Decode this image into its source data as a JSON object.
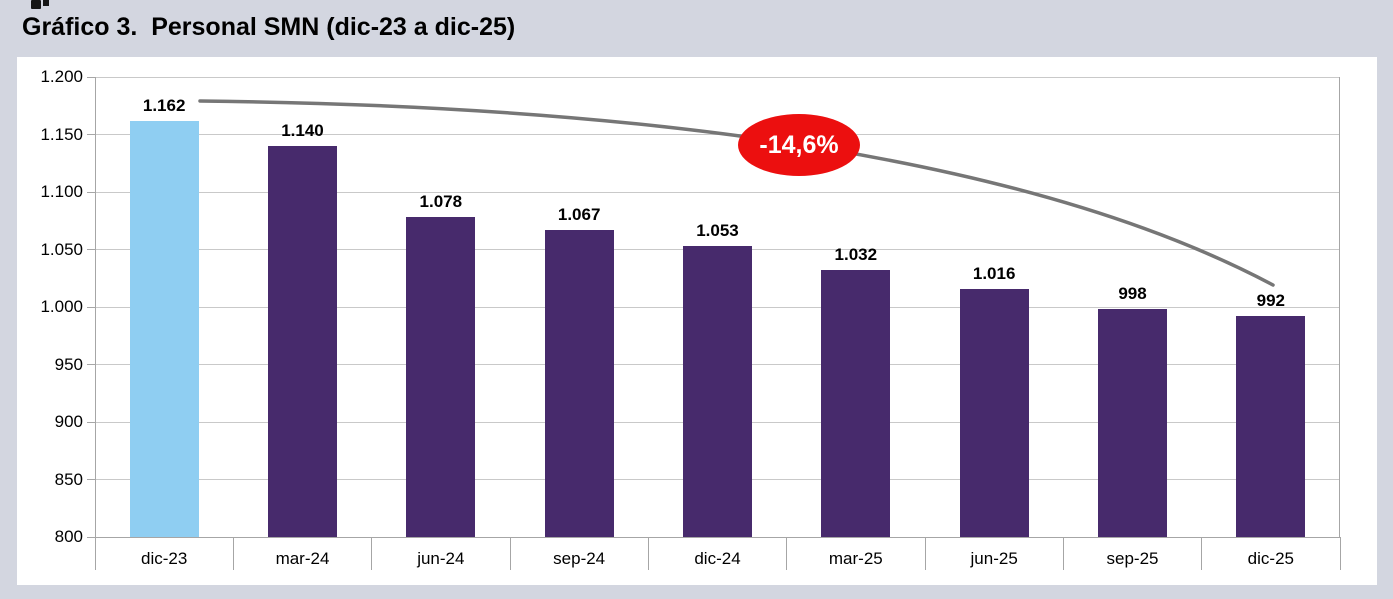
{
  "title": "Gráfico 3.  Personal SMN (dic-23 a dic-25)",
  "chart_data": {
    "type": "bar",
    "title": "Gráfico 3.  Personal SMN (dic-23 a dic-25)",
    "categories": [
      "dic-23",
      "mar-24",
      "jun-24",
      "sep-24",
      "dic-24",
      "mar-25",
      "jun-25",
      "sep-25",
      "dic-25"
    ],
    "values": [
      1162,
      1140,
      1078,
      1067,
      1053,
      1032,
      1016,
      998,
      992
    ],
    "value_labels": [
      "1.162",
      "1.140",
      "1.078",
      "1.067",
      "1.053",
      "1.032",
      "1.016",
      "998",
      "992"
    ],
    "xlabel": "",
    "ylabel": "",
    "ylim": [
      800,
      1200
    ],
    "ytick_step": 50,
    "ytick_labels": [
      "800",
      "850",
      "900",
      "950",
      "1.000",
      "1.050",
      "1.100",
      "1.150",
      "1.200"
    ],
    "grid": true,
    "legend": "none",
    "bar_colors": {
      "highlight_first": "#8FCEF2",
      "default": "#472A6C"
    },
    "trend_line_color": "#767676",
    "annotation": {
      "label": "-14,6%",
      "shape": "ellipse",
      "fill": "#EC0F0F",
      "text_color": "#FFFFFF"
    }
  },
  "colors": {
    "page_background": "#D3D6E0",
    "panel_background": "#FFFFFF",
    "gridline": "#C9C9C9",
    "axis": "#A6A6A6",
    "text": "#000000"
  }
}
